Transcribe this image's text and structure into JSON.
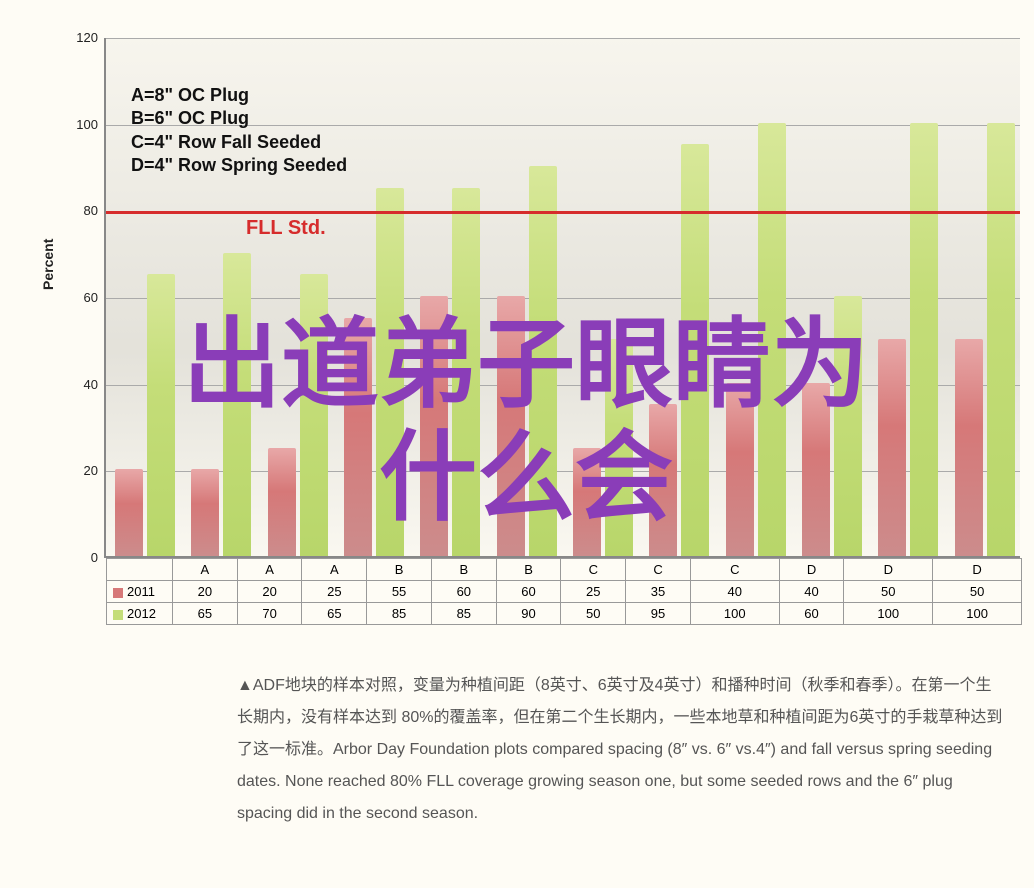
{
  "chart": {
    "type": "bar",
    "y_axis_label": "Percent",
    "y_ticks": [
      0,
      20,
      40,
      60,
      80,
      100,
      120
    ],
    "y_max": 120,
    "categories": [
      "A",
      "A",
      "A",
      "B",
      "B",
      "B",
      "C",
      "C",
      "C",
      "D",
      "D",
      "D"
    ],
    "series_2011": {
      "label": "2011",
      "color": "#d67878",
      "values": [
        20,
        20,
        25,
        55,
        60,
        60,
        25,
        35,
        40,
        40,
        50,
        50
      ]
    },
    "series_2012": {
      "label": "2012",
      "color": "#c4dd78",
      "values": [
        65,
        70,
        65,
        85,
        85,
        90,
        50,
        95,
        100,
        60,
        100,
        100
      ]
    },
    "legend_lines": [
      "A=8\" OC Plug",
      "B=6\" OC Plug",
      "C=4\" Row Fall Seeded",
      "D=4\" Row Spring Seeded"
    ],
    "reference_line": {
      "value": 80,
      "label": "FLL Std.",
      "color": "#d62c2c"
    },
    "background_color": "#fefcf5",
    "grid_color": "#aaaaaa"
  },
  "overlay_text_line1": "出道弟子眼睛为",
  "overlay_text_line2": "什么会",
  "caption_text": "▲ADF地块的样本对照，变量为种植间距（8英寸、6英寸及4英寸）和播种时间（秋季和春季）。在第一个生长期内，没有样本达到 80%的覆盖率，但在第二个生长期内，一些本地草和种植间距为6英寸的手栽草种达到了这一标准。Arbor Day Foundation plots compared spacing (8″ vs. 6″ vs.4″) and fall versus spring seeding dates. None reached 80% FLL coverage growing season one, but some seeded rows and the 6″ plug spacing did in the second season."
}
